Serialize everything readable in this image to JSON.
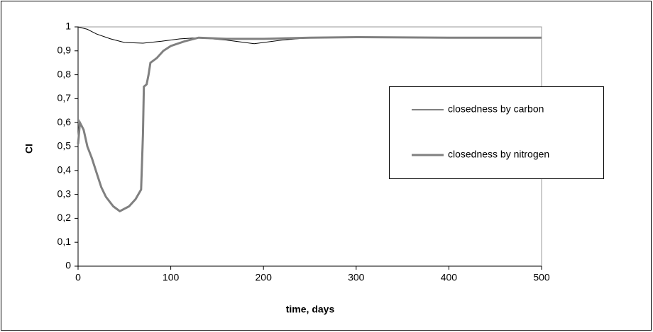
{
  "chart_data": {
    "type": "line",
    "y_label": "CI",
    "x_label": "time, days",
    "xlim": [
      0,
      500
    ],
    "xticks": [
      0,
      100,
      200,
      300,
      400,
      500
    ],
    "ylim": [
      0,
      1
    ],
    "yticks": [
      0,
      {
        "value": 0.1,
        "label": "0,1"
      },
      {
        "value": 0.2,
        "label": "0,2"
      },
      {
        "value": 0.3,
        "label": "0,3"
      },
      {
        "value": 0.4,
        "label": "0,4"
      },
      {
        "value": 0.5,
        "label": "0,5"
      },
      {
        "value": 0.6,
        "label": "0,6"
      },
      {
        "value": 0.7,
        "label": "0,7"
      },
      {
        "value": 0.8,
        "label": "0,8"
      },
      {
        "value": 0.9,
        "label": "0,9"
      },
      1
    ],
    "grid": false,
    "legend": "right",
    "series": [
      {
        "name": "closedness by carbon",
        "color": "#000000",
        "width": 1,
        "x": [
          0,
          10,
          20,
          35,
          50,
          70,
          90,
          110,
          130,
          160,
          190,
          220,
          250,
          300,
          400,
          500
        ],
        "values": [
          1,
          0.99,
          0.97,
          0.95,
          0.935,
          0.932,
          0.94,
          0.95,
          0.955,
          0.945,
          0.93,
          0.945,
          0.955,
          0.958,
          0.955,
          0.955
        ]
      },
      {
        "name": "closedness by nitrogen",
        "color": "#808080",
        "width": 3,
        "x": [
          0,
          2,
          6,
          10,
          15,
          20,
          25,
          30,
          38,
          45,
          55,
          62,
          68,
          70,
          71,
          74,
          76,
          78,
          85,
          92,
          100,
          115,
          130,
          160,
          200,
          250,
          300,
          400,
          500
        ],
        "values": [
          0.51,
          0.6,
          0.57,
          0.5,
          0.45,
          0.39,
          0.33,
          0.29,
          0.25,
          0.23,
          0.25,
          0.28,
          0.32,
          0.55,
          0.75,
          0.76,
          0.8,
          0.85,
          0.87,
          0.9,
          0.92,
          0.94,
          0.955,
          0.95,
          0.95,
          0.955,
          0.957,
          0.955,
          0.955
        ]
      }
    ]
  }
}
